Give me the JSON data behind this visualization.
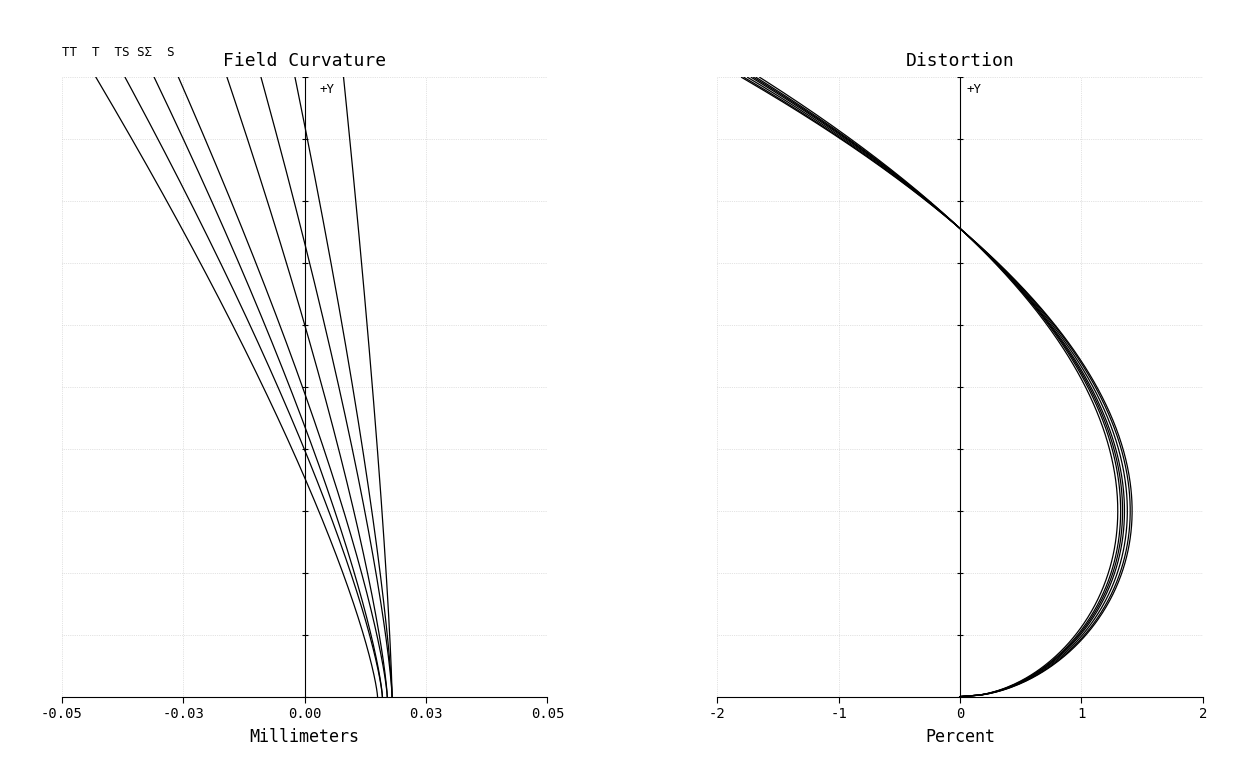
{
  "fc_title": "Field Curvature",
  "dist_title": "Distortion",
  "fc_xlabel": "Millimeters",
  "dist_xlabel": "Percent",
  "fc_xlim": [
    -0.05,
    0.05
  ],
  "dist_xlim": [
    -2,
    2
  ],
  "ylim": [
    0,
    1.0
  ],
  "ylabel_plus": "+Y",
  "fc_legend_line1": "TT  T  ΤΣ SΣ  S",
  "bg_color": "#ffffff",
  "line_color": "#000000",
  "grid_color": "#bbbbbb"
}
